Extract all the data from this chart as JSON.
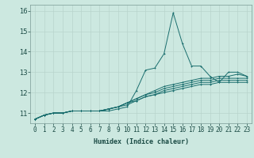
{
  "xlabel": "Humidex (Indice chaleur)",
  "bg_color": "#cce8e0",
  "grid_color": "#b8d4cc",
  "line_color": "#1a6e6e",
  "x_values": [
    0,
    1,
    2,
    3,
    4,
    5,
    6,
    7,
    8,
    9,
    10,
    11,
    12,
    13,
    14,
    15,
    16,
    17,
    18,
    19,
    20,
    21,
    22,
    23
  ],
  "series": [
    [
      10.7,
      10.9,
      11.0,
      11.0,
      11.1,
      11.1,
      11.1,
      11.1,
      11.1,
      11.2,
      11.3,
      12.1,
      13.1,
      13.2,
      13.9,
      15.9,
      14.4,
      13.3,
      13.3,
      12.8,
      12.5,
      13.0,
      13.0,
      12.8
    ],
    [
      10.7,
      10.9,
      11.0,
      11.0,
      11.1,
      11.1,
      11.1,
      11.1,
      11.2,
      11.3,
      11.5,
      11.7,
      11.9,
      12.1,
      12.3,
      12.4,
      12.5,
      12.6,
      12.7,
      12.7,
      12.8,
      12.8,
      12.9,
      12.8
    ],
    [
      10.7,
      10.9,
      11.0,
      11.0,
      11.1,
      11.1,
      11.1,
      11.1,
      11.2,
      11.3,
      11.5,
      11.7,
      11.9,
      12.0,
      12.2,
      12.3,
      12.4,
      12.5,
      12.6,
      12.6,
      12.7,
      12.7,
      12.7,
      12.7
    ],
    [
      10.7,
      10.9,
      11.0,
      11.0,
      11.1,
      11.1,
      11.1,
      11.1,
      11.2,
      11.3,
      11.5,
      11.6,
      11.8,
      11.9,
      12.1,
      12.2,
      12.3,
      12.4,
      12.5,
      12.5,
      12.6,
      12.6,
      12.6,
      12.6
    ],
    [
      10.7,
      10.9,
      11.0,
      11.0,
      11.1,
      11.1,
      11.1,
      11.1,
      11.2,
      11.3,
      11.4,
      11.6,
      11.8,
      11.9,
      12.0,
      12.1,
      12.2,
      12.3,
      12.4,
      12.4,
      12.5,
      12.5,
      12.5,
      12.5
    ]
  ],
  "ylim": [
    10.5,
    16.3
  ],
  "yticks": [
    11,
    12,
    13,
    14,
    15,
    16
  ],
  "xticks": [
    0,
    1,
    2,
    3,
    4,
    5,
    6,
    7,
    8,
    9,
    10,
    11,
    12,
    13,
    14,
    15,
    16,
    17,
    18,
    19,
    20,
    21,
    22,
    23
  ],
  "xlabel_fontsize": 6.0,
  "tick_fontsize": 5.5,
  "ytick_fontsize": 6.0,
  "linewidth": 0.7,
  "markersize": 2.0,
  "spine_color": "#7a9a94"
}
